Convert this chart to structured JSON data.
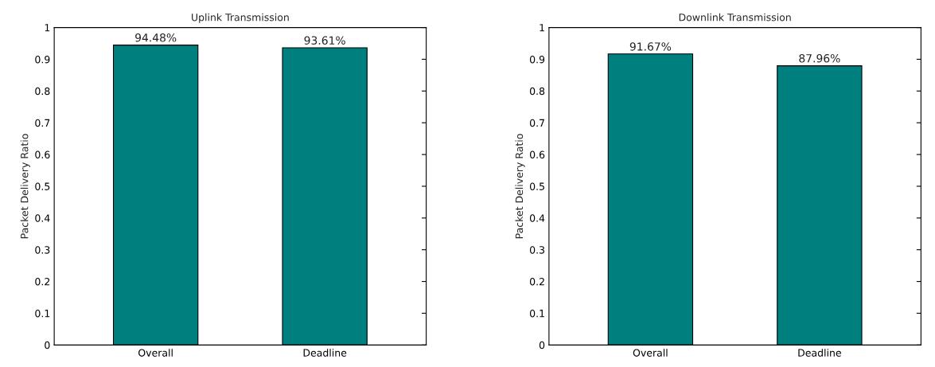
{
  "chart_data": [
    {
      "type": "bar",
      "title": "Uplink Transmission",
      "ylabel": "Packet Delivery Ratio",
      "categories": [
        "Overall",
        "Deadline"
      ],
      "values": [
        0.9448,
        0.9361
      ],
      "value_labels": [
        "94.48%",
        "93.61%"
      ],
      "color": "#007f7f",
      "ylim": [
        0,
        1
      ],
      "yticks": [
        0,
        0.1,
        0.2,
        0.3,
        0.4,
        0.5,
        0.6,
        0.7,
        0.8,
        0.9,
        1
      ],
      "grid": false,
      "legend": false
    },
    {
      "type": "bar",
      "title": "Downlink Transmission",
      "ylabel": "Packet Delivery Ratio",
      "categories": [
        "Overall",
        "Deadline"
      ],
      "values": [
        0.9167,
        0.8796
      ],
      "value_labels": [
        "91.67%",
        "87.96%"
      ],
      "color": "#007f7f",
      "ylim": [
        0,
        1
      ],
      "yticks": [
        0,
        0.1,
        0.2,
        0.3,
        0.4,
        0.5,
        0.6,
        0.7,
        0.8,
        0.9,
        1
      ],
      "grid": false,
      "legend": false
    }
  ]
}
